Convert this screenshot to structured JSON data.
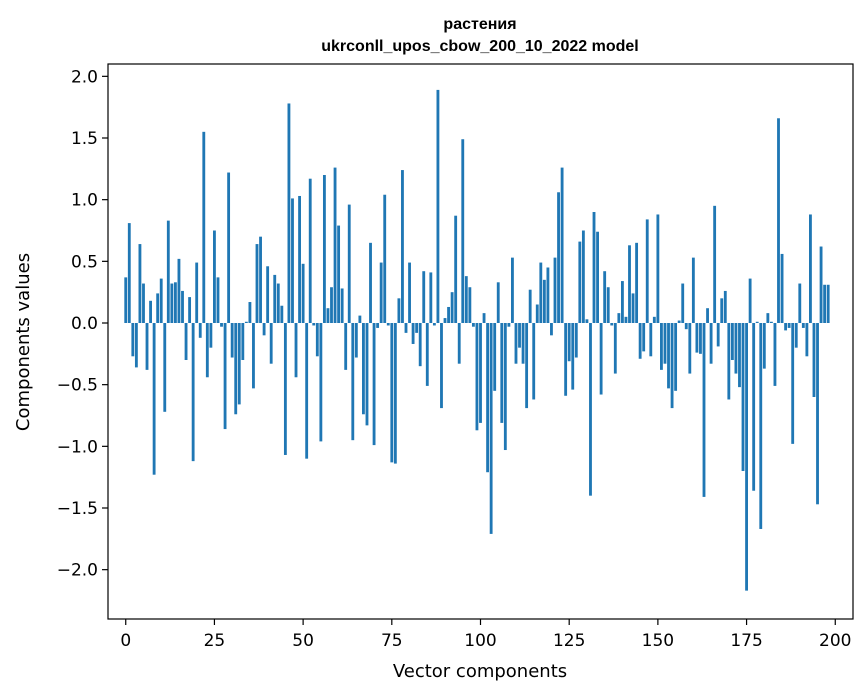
{
  "chart_data": {
    "type": "bar",
    "title": "растения",
    "subtitle": "ukrconll_upos_cbow_200_10_2022 model",
    "xlabel": "Vector components",
    "ylabel": "Components values",
    "xlim": [
      -5,
      205
    ],
    "ylim": [
      -2.4,
      2.1
    ],
    "xticks": [
      0,
      25,
      50,
      75,
      100,
      125,
      150,
      175,
      200
    ],
    "yticks": [
      -2.0,
      -1.5,
      -1.0,
      -0.5,
      0.0,
      0.5,
      1.0,
      1.5,
      2.0
    ],
    "ytick_labels": [
      "−2.0",
      "−1.5",
      "−1.0",
      "−0.5",
      "0.0",
      "0.5",
      "1.0",
      "1.5",
      "2.0"
    ],
    "xtick_labels": [
      "0",
      "25",
      "50",
      "75",
      "100",
      "125",
      "150",
      "175",
      "200"
    ],
    "bar_color": "#1f77b4",
    "values": [
      0.37,
      0.81,
      -0.27,
      -0.36,
      0.64,
      0.32,
      -0.38,
      0.18,
      -1.23,
      0.24,
      0.36,
      -0.72,
      0.83,
      0.32,
      0.33,
      0.52,
      0.26,
      -0.3,
      0.21,
      -1.12,
      0.49,
      -0.12,
      1.55,
      -0.44,
      -0.2,
      0.75,
      0.37,
      -0.03,
      -0.86,
      1.22,
      -0.28,
      -0.74,
      -0.66,
      -0.3,
      0.01,
      0.17,
      -0.53,
      0.64,
      0.7,
      -0.1,
      0.46,
      -0.33,
      0.39,
      0.32,
      0.14,
      -1.07,
      1.78,
      1.01,
      -0.44,
      1.03,
      0.48,
      -1.1,
      1.17,
      -0.02,
      -0.27,
      -0.96,
      1.2,
      0.12,
      0.29,
      1.26,
      0.79,
      0.28,
      -0.38,
      0.96,
      -0.95,
      -0.28,
      0.06,
      -0.74,
      -0.83,
      0.65,
      -0.99,
      -0.04,
      0.49,
      1.04,
      -0.02,
      -1.13,
      -1.14,
      0.2,
      1.24,
      -0.08,
      0.49,
      -0.17,
      -0.08,
      -0.35,
      0.42,
      -0.51,
      0.41,
      -0.02,
      1.89,
      -0.69,
      0.04,
      0.13,
      0.25,
      0.87,
      -0.33,
      1.49,
      0.38,
      0.29,
      -0.03,
      -0.87,
      -0.81,
      0.08,
      -1.21,
      -1.71,
      -0.55,
      0.33,
      -0.81,
      -1.03,
      -0.03,
      0.53,
      -0.33,
      -0.2,
      -0.33,
      -0.69,
      0.27,
      -0.62,
      0.15,
      0.49,
      0.35,
      0.45,
      -0.1,
      0.53,
      1.06,
      1.26,
      -0.59,
      -0.31,
      -0.54,
      -0.28,
      0.66,
      0.75,
      0.03,
      -1.4,
      0.9,
      0.74,
      -0.58,
      0.42,
      0.29,
      -0.02,
      -0.41,
      0.08,
      0.34,
      0.05,
      0.63,
      0.24,
      0.65,
      -0.29,
      -0.23,
      0.84,
      -0.27,
      0.05,
      0.88,
      -0.38,
      -0.33,
      -0.53,
      -0.69,
      -0.55,
      0.02,
      0.32,
      -0.05,
      -0.41,
      0.53,
      -0.24,
      -0.25,
      -1.41,
      0.12,
      -0.33,
      0.95,
      -0.19,
      0.2,
      0.26,
      -0.62,
      -0.3,
      -0.41,
      -0.52,
      -1.2,
      -2.17,
      0.36,
      -1.36,
      0.01,
      -1.67,
      -0.37,
      0.08,
      0.01,
      -0.51,
      1.66,
      0.56,
      -0.06,
      -0.04,
      -0.98,
      -0.2,
      0.32,
      -0.04,
      -0.27,
      0.88,
      -0.6,
      -1.47,
      0.62,
      0.31,
      0.31
    ]
  }
}
